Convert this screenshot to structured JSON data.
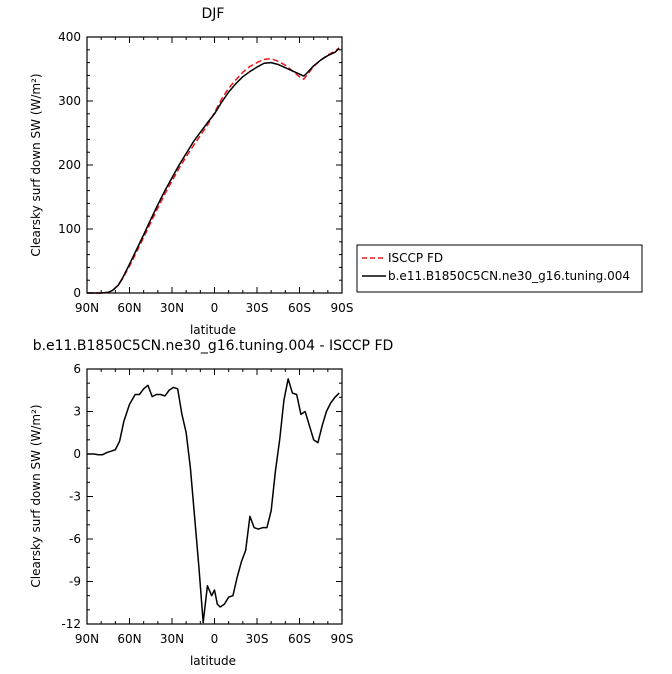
{
  "chart_data": [
    {
      "type": "line",
      "title": "DJF",
      "xlabel": "latitude",
      "ylabel": "Clearsky surf down SW (W/m²)",
      "xlim": [
        90,
        -90
      ],
      "ylim": [
        0,
        400
      ],
      "xticks": [
        90,
        60,
        30,
        0,
        -30,
        -60,
        -90
      ],
      "xticklabels": [
        "90N",
        "60N",
        "30N",
        "0",
        "30S",
        "60S",
        "90S"
      ],
      "yticks": [
        0,
        100,
        200,
        300,
        400
      ],
      "yticklabels": [
        "0",
        "100",
        "200",
        "300",
        "400"
      ],
      "legend_position": "right",
      "series": [
        {
          "name": "ISCCP FD",
          "color": "#e8191c",
          "style": "dashed",
          "x": [
            90,
            85,
            80,
            75,
            72,
            68,
            65,
            60,
            55,
            50,
            45,
            40,
            35,
            30,
            25,
            20,
            15,
            10,
            5,
            0,
            -5,
            -10,
            -15,
            -20,
            -25,
            -30,
            -35,
            -40,
            -45,
            -50,
            -55,
            -60,
            -63,
            -65,
            -70,
            -75,
            -80,
            -85,
            -88
          ],
          "values": [
            0,
            0,
            0,
            1,
            4,
            12,
            22,
            42,
            64,
            87,
            110,
            133,
            155,
            175,
            195,
            213,
            230,
            246,
            262,
            282,
            303,
            320,
            333,
            345,
            354,
            360,
            365,
            366,
            362,
            356,
            347,
            338,
            334,
            340,
            354,
            364,
            372,
            378,
            383
          ]
        },
        {
          "name": "b.e11.B1850C5CN.ne30_g16.tuning.004",
          "color": "#000000",
          "style": "solid",
          "x": [
            90,
            85,
            80,
            75,
            72,
            68,
            65,
            60,
            55,
            50,
            45,
            40,
            35,
            30,
            25,
            20,
            15,
            10,
            5,
            0,
            -5,
            -10,
            -15,
            -20,
            -25,
            -30,
            -35,
            -40,
            -45,
            -50,
            -55,
            -60,
            -63,
            -65,
            -70,
            -75,
            -80,
            -85,
            -88
          ],
          "values": [
            0,
            0,
            0,
            1,
            4,
            12,
            23,
            45,
            68,
            91,
            115,
            138,
            160,
            180,
            200,
            218,
            236,
            251,
            266,
            280,
            298,
            314,
            327,
            338,
            346,
            353,
            359,
            360,
            357,
            352,
            347,
            342,
            339,
            343,
            355,
            364,
            371,
            376,
            382
          ]
        }
      ]
    },
    {
      "type": "line",
      "title": "b.e11.B1850C5CN.ne30_g16.tuning.004 - ISCCP FD",
      "xlabel": "latitude",
      "ylabel": "Clearsky surf down SW (W/m²)",
      "xlim": [
        90,
        -90
      ],
      "ylim": [
        -12,
        6
      ],
      "xticks": [
        90,
        60,
        30,
        0,
        -30,
        -60,
        -90
      ],
      "xticklabels": [
        "90N",
        "60N",
        "30N",
        "0",
        "30S",
        "60S",
        "90S"
      ],
      "yticks": [
        -12,
        -9,
        -6,
        -3,
        0,
        3,
        6
      ],
      "yticklabels": [
        "-12",
        "-9",
        "-6",
        "-3",
        "0",
        "3",
        "6"
      ],
      "series": [
        {
          "name": "",
          "color": "#000000",
          "style": "solid",
          "x": [
            90,
            85,
            82,
            79,
            76,
            73,
            70,
            67,
            64,
            60,
            56,
            53,
            50,
            47,
            44,
            41,
            38,
            35,
            32,
            29,
            26,
            23,
            20,
            17,
            14,
            11,
            8,
            5,
            2,
            0,
            -2,
            -4,
            -7,
            -10,
            -13,
            -16,
            -19,
            -22,
            -25,
            -28,
            -31,
            -34,
            -37,
            -40,
            -43,
            -46,
            -49,
            -52,
            -55,
            -58,
            -61,
            -64,
            -67,
            -70,
            -73,
            -76,
            -79,
            -82,
            -85,
            -88
          ],
          "values": [
            0.0,
            0.0,
            -0.05,
            -0.05,
            0.1,
            0.2,
            0.3,
            0.9,
            2.3,
            3.5,
            4.2,
            4.2,
            4.6,
            4.85,
            4.05,
            4.2,
            4.2,
            4.1,
            4.5,
            4.7,
            4.6,
            2.8,
            1.5,
            -1.0,
            -4.5,
            -8.0,
            -11.9,
            -9.3,
            -10.0,
            -9.6,
            -10.6,
            -10.8,
            -10.6,
            -10.1,
            -10.0,
            -8.7,
            -7.6,
            -6.8,
            -4.4,
            -5.2,
            -5.3,
            -5.2,
            -5.2,
            -4.0,
            -1.2,
            1.0,
            3.8,
            5.3,
            4.3,
            4.2,
            2.8,
            3.0,
            2.0,
            1.0,
            0.8,
            2.0,
            3.0,
            3.6,
            4.0,
            4.3
          ]
        }
      ]
    }
  ]
}
